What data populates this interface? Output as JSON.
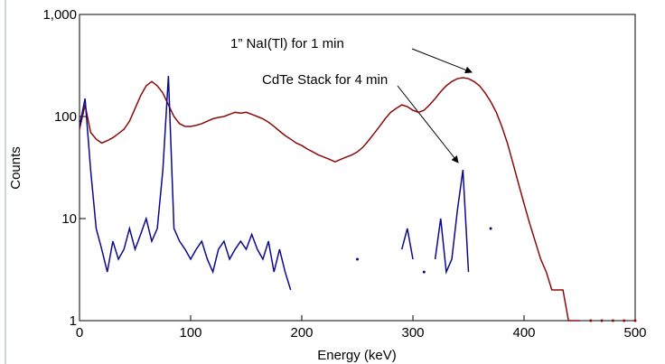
{
  "chart_data": {
    "type": "line",
    "x_label": "Energy (keV)",
    "y_label": "Counts",
    "annotations": [
      "1” NaI(Tl) for 1 min",
      "CdTe Stack for 4 min"
    ],
    "log_y": true,
    "xlim": [
      0,
      500
    ],
    "xticks": [
      0,
      100,
      200,
      300,
      400,
      500
    ],
    "ylim": [
      1,
      1000
    ],
    "yticks": [
      1,
      10,
      100,
      {
        "value": 1000,
        "label": "1,000"
      }
    ],
    "x": [
      0,
      5,
      10,
      15,
      20,
      25,
      30,
      35,
      40,
      45,
      50,
      55,
      60,
      65,
      70,
      75,
      80,
      85,
      90,
      95,
      100,
      105,
      110,
      115,
      120,
      125,
      130,
      135,
      140,
      145,
      150,
      155,
      160,
      165,
      170,
      175,
      180,
      185,
      190,
      195,
      200,
      205,
      210,
      215,
      220,
      225,
      230,
      235,
      240,
      245,
      250,
      255,
      260,
      265,
      270,
      275,
      280,
      285,
      290,
      295,
      300,
      305,
      310,
      315,
      320,
      325,
      330,
      335,
      340,
      345,
      350,
      355,
      360,
      365,
      370,
      375,
      380,
      385,
      390,
      395,
      400,
      405,
      410,
      415,
      420,
      425,
      430,
      435,
      440,
      445,
      450,
      455,
      460,
      465,
      470,
      475,
      480,
      485,
      490,
      495,
      500
    ],
    "series": [
      {
        "color": "#8b0a0a",
        "values": [
          75,
          130,
          70,
          60,
          55,
          58,
          62,
          68,
          75,
          90,
          120,
          160,
          200,
          220,
          200,
          170,
          130,
          100,
          85,
          80,
          80,
          82,
          85,
          90,
          95,
          98,
          100,
          105,
          110,
          108,
          110,
          105,
          100,
          95,
          88,
          80,
          72,
          65,
          60,
          55,
          52,
          48,
          45,
          42,
          40,
          38,
          36,
          38,
          40,
          42,
          45,
          50,
          58,
          68,
          80,
          95,
          110,
          120,
          130,
          125,
          115,
          110,
          115,
          130,
          150,
          175,
          200,
          220,
          235,
          240,
          235,
          220,
          200,
          170,
          140,
          110,
          80,
          55,
          35,
          22,
          14,
          9,
          6,
          4,
          3,
          2,
          2,
          2,
          1,
          1,
          1,
          null,
          1,
          null,
          1,
          null,
          1,
          null,
          1,
          null,
          1
        ]
      },
      {
        "color": "#0a0a8c",
        "values": [
          80,
          150,
          30,
          8,
          5,
          3,
          6,
          4,
          5,
          8,
          5,
          7,
          10,
          6,
          8,
          30,
          250,
          8,
          6,
          5,
          4,
          5,
          6,
          4,
          3,
          5,
          6,
          4,
          5,
          6,
          5,
          7,
          5,
          4,
          6,
          3,
          5,
          3,
          2,
          null,
          null,
          null,
          null,
          null,
          null,
          null,
          null,
          null,
          null,
          null,
          4,
          null,
          null,
          null,
          null,
          null,
          null,
          null,
          5,
          8,
          4,
          null,
          3,
          null,
          4,
          10,
          3,
          4,
          12,
          30,
          3,
          null,
          null,
          null,
          8,
          null,
          null,
          null,
          null,
          null,
          null,
          null,
          null,
          null,
          null,
          null,
          null,
          null,
          null,
          null,
          null,
          null,
          null,
          null,
          null,
          null,
          null,
          null,
          null,
          null,
          null
        ]
      }
    ]
  }
}
